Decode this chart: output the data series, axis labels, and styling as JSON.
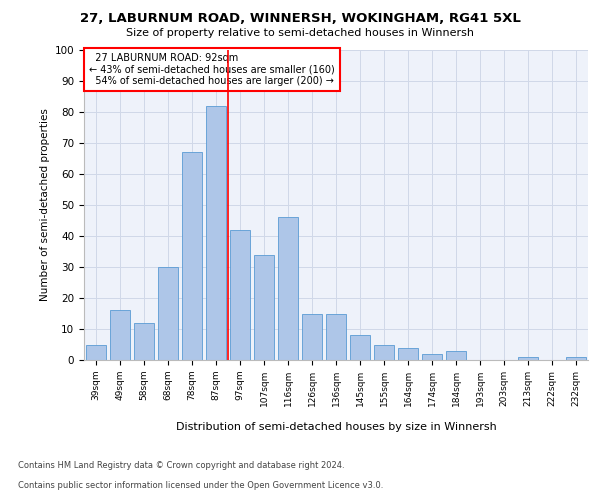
{
  "title": "27, LABURNUM ROAD, WINNERSH, WOKINGHAM, RG41 5XL",
  "subtitle": "Size of property relative to semi-detached houses in Winnersh",
  "xlabel": "Distribution of semi-detached houses by size in Winnersh",
  "ylabel": "Number of semi-detached properties",
  "categories": [
    "39sqm",
    "49sqm",
    "58sqm",
    "68sqm",
    "78sqm",
    "87sqm",
    "97sqm",
    "107sqm",
    "116sqm",
    "126sqm",
    "136sqm",
    "145sqm",
    "155sqm",
    "164sqm",
    "174sqm",
    "184sqm",
    "193sqm",
    "203sqm",
    "213sqm",
    "222sqm",
    "232sqm"
  ],
  "values": [
    5,
    16,
    12,
    30,
    67,
    82,
    42,
    34,
    46,
    15,
    15,
    8,
    5,
    4,
    2,
    3,
    0,
    0,
    1,
    0,
    1
  ],
  "bar_color": "#aec6e8",
  "bar_edge_color": "#5a9bd4",
  "subject_line_color": "red",
  "subject_label": "27 LABURNUM ROAD: 92sqm",
  "pct_smaller": 43,
  "count_smaller": 160,
  "pct_larger": 54,
  "count_larger": 200,
  "ylim": [
    0,
    100
  ],
  "yticks": [
    0,
    10,
    20,
    30,
    40,
    50,
    60,
    70,
    80,
    90,
    100
  ],
  "grid_color": "#d0d8e8",
  "bg_color": "#eef2fa",
  "footer1": "Contains HM Land Registry data © Crown copyright and database right 2024.",
  "footer2": "Contains public sector information licensed under the Open Government Licence v3.0."
}
